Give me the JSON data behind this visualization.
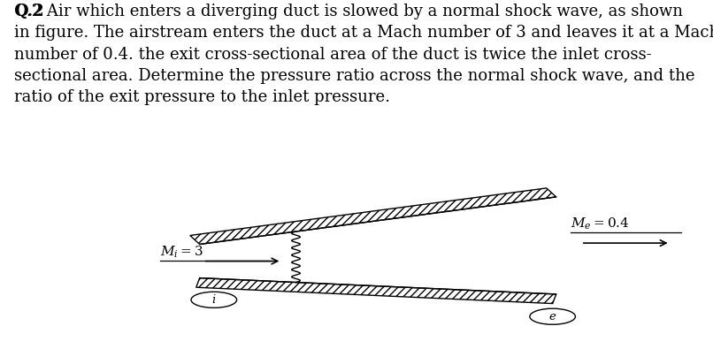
{
  "title_bold": "Q.2",
  "title_rest": " Air which enters a diverging duct is slowed by a normal shock wave, as shown\nin figure. The airstream enters the duct at a Mach number of 3 and leaves it at a Mach\nnumber of 0.4. the exit cross-sectional area of the duct is twice the inlet cross-\nsectional area. Determine the pressure ratio across the normal shock wave, and the\nratio of the exit pressure to the inlet pressure.",
  "Mi_label": "$\\mathit{M_i}=3$",
  "Me_label": "$\\mathit{M_e}=0.4$",
  "i_label": "i",
  "e_label": "e",
  "text_color": "#000000",
  "bg_color": "#ffffff",
  "fontsize_text": 13,
  "fontsize_label": 11
}
